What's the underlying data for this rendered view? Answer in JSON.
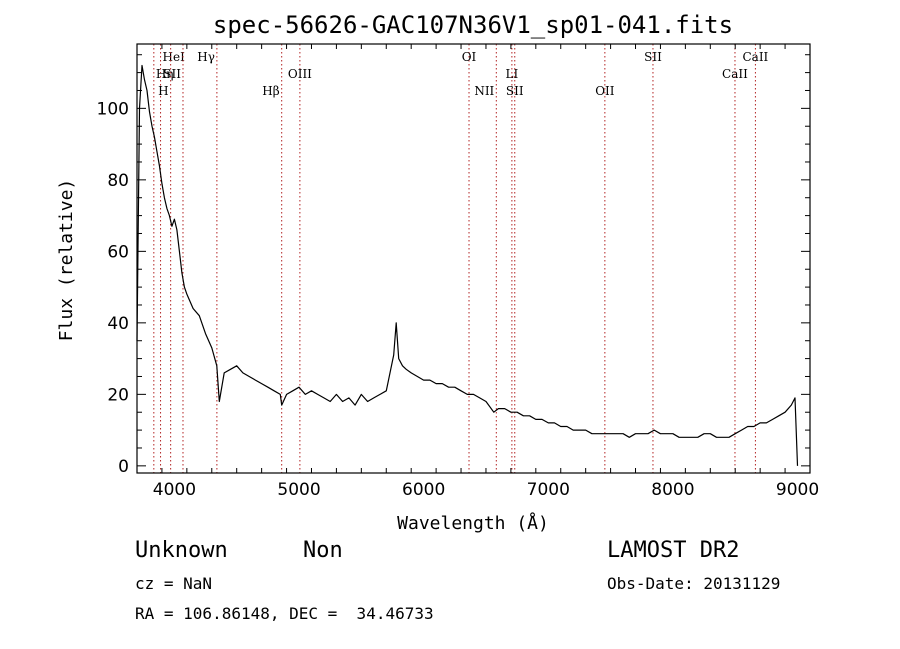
{
  "chart_data": {
    "type": "line",
    "title": "spec-56626-GAC107N36V1_sp01-041.fits",
    "xlabel": "Wavelength (Å)",
    "ylabel": "Flux (relative)",
    "xlim": [
      3700,
      9100
    ],
    "ylim": [
      -2,
      118
    ],
    "x_ticks": [
      4000,
      5000,
      6000,
      7000,
      8000,
      9000
    ],
    "y_ticks": [
      0,
      20,
      40,
      60,
      80,
      100
    ],
    "grid": false,
    "line_color": "#000000",
    "marker_color": "#b22222",
    "series": [
      {
        "x": [
          3700,
          3720,
          3740,
          3760,
          3780,
          3800,
          3820,
          3840,
          3860,
          3880,
          3900,
          3920,
          3940,
          3960,
          3980,
          4000,
          4020,
          4040,
          4060,
          4080,
          4100,
          4150,
          4200,
          4250,
          4300,
          4340,
          4360,
          4400,
          4450,
          4500,
          4550,
          4600,
          4650,
          4700,
          4750,
          4800,
          4850,
          4861,
          4900,
          4950,
          5000,
          5050,
          5100,
          5150,
          5200,
          5250,
          5300,
          5350,
          5400,
          5450,
          5500,
          5550,
          5600,
          5650,
          5700,
          5730,
          5760,
          5780,
          5800,
          5830,
          5860,
          5900,
          5950,
          6000,
          6050,
          6100,
          6150,
          6200,
          6250,
          6300,
          6350,
          6400,
          6450,
          6500,
          6563,
          6600,
          6650,
          6700,
          6750,
          6800,
          6850,
          6900,
          6950,
          7000,
          7050,
          7100,
          7150,
          7200,
          7250,
          7300,
          7350,
          7400,
          7450,
          7500,
          7550,
          7600,
          7650,
          7700,
          7750,
          7800,
          7850,
          7900,
          7950,
          8000,
          8050,
          8100,
          8150,
          8200,
          8250,
          8300,
          8350,
          8400,
          8450,
          8500,
          8550,
          8600,
          8650,
          8700,
          8750,
          8800,
          8850,
          8900,
          8950,
          8980,
          9000
        ],
        "y": [
          35,
          100,
          112,
          108,
          105,
          99,
          95,
          92,
          88,
          84,
          79,
          75,
          72,
          70,
          67,
          69,
          66,
          60,
          54,
          50,
          48,
          44,
          42,
          37,
          33,
          28,
          18,
          26,
          27,
          28,
          26,
          25,
          24,
          23,
          22,
          21,
          20,
          17,
          20,
          21,
          22,
          20,
          21,
          20,
          19,
          18,
          20,
          18,
          19,
          17,
          20,
          18,
          19,
          20,
          21,
          26,
          31,
          40,
          30,
          28,
          27,
          26,
          25,
          24,
          24,
          23,
          23,
          22,
          22,
          21,
          20,
          20,
          19,
          18,
          15,
          16,
          16,
          15,
          15,
          14,
          14,
          13,
          13,
          12,
          12,
          11,
          11,
          10,
          10,
          10,
          9,
          9,
          9,
          9,
          9,
          9,
          8,
          9,
          9,
          9,
          10,
          9,
          9,
          9,
          8,
          8,
          8,
          8,
          9,
          9,
          8,
          8,
          8,
          9,
          10,
          11,
          11,
          12,
          12,
          13,
          14,
          15,
          17,
          19,
          0
        ]
      }
    ],
    "spectral_lines": [
      {
        "label": "HeI",
        "x": 3889,
        "row": 0,
        "anchor": "start"
      },
      {
        "label": "Hη",
        "x": 3835,
        "row": 1,
        "anchor": "start"
      },
      {
        "label": "SII",
        "x": 4069,
        "row": 1,
        "anchor": "end"
      },
      {
        "label": "H",
        "x": 3970,
        "row": 2,
        "anchor": "end"
      },
      {
        "label": "Hγ",
        "x": 4341,
        "row": 0,
        "anchor": "end"
      },
      {
        "label": "OIII",
        "x": 5007,
        "row": 1,
        "anchor": "middle"
      },
      {
        "label": "Hβ",
        "x": 4861,
        "row": 2,
        "anchor": "end"
      },
      {
        "label": "OI",
        "x": 6364,
        "row": 0,
        "anchor": "middle"
      },
      {
        "label": "NII",
        "x": 6583,
        "row": 2,
        "anchor": "end"
      },
      {
        "label": "LI",
        "x": 6708,
        "row": 1,
        "anchor": "middle"
      },
      {
        "label": "SII",
        "x": 6731,
        "row": 2,
        "anchor": "middle"
      },
      {
        "label": "OII",
        "x": 7454,
        "row": 2,
        "anchor": "middle"
      },
      {
        "label": "SII",
        "x": 7840,
        "row": 0,
        "anchor": "middle"
      },
      {
        "label": "CaII",
        "x": 8498,
        "row": 1,
        "anchor": "middle"
      },
      {
        "label": "CaII",
        "x": 8662,
        "row": 0,
        "anchor": "middle"
      }
    ]
  },
  "info": {
    "classification": "Unknown",
    "subclass": "Non",
    "survey": "LAMOST DR2",
    "cz": "cz = NaN",
    "obs_date": "Obs-Date: 20131129",
    "coords": "RA = 106.86148, DEC =  34.46733"
  }
}
